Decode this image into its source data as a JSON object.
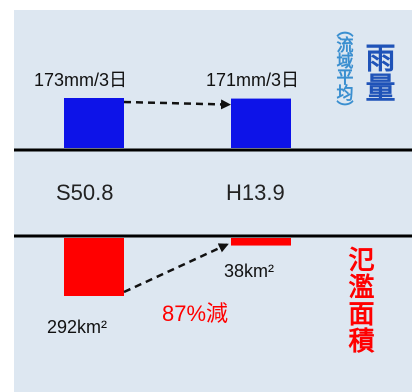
{
  "colors": {
    "background": "#dde7f1",
    "rainfall_bar": "#0d13e8",
    "flood_bar": "#ff0000",
    "rain_title": "#1f53b8",
    "rain_subtitle": "#3a8fd0",
    "flood_title": "#ff0000",
    "reduction_text": "#ff0000"
  },
  "chart_data": [
    {
      "type": "bar",
      "title": "雨量",
      "subtitle": "（流域平均）",
      "categories": [
        "S50.8",
        "H13.9"
      ],
      "values": [
        173,
        171
      ],
      "unit": "mm/3日",
      "data_labels": [
        "173mm/3日",
        "171mm/3日"
      ]
    },
    {
      "type": "bar",
      "title": "氾濫面積",
      "categories": [
        "S50.8",
        "H13.9"
      ],
      "values": [
        292,
        38
      ],
      "data_labels": [
        "292km²",
        "38km²"
      ],
      "annotation": "87%減"
    }
  ]
}
